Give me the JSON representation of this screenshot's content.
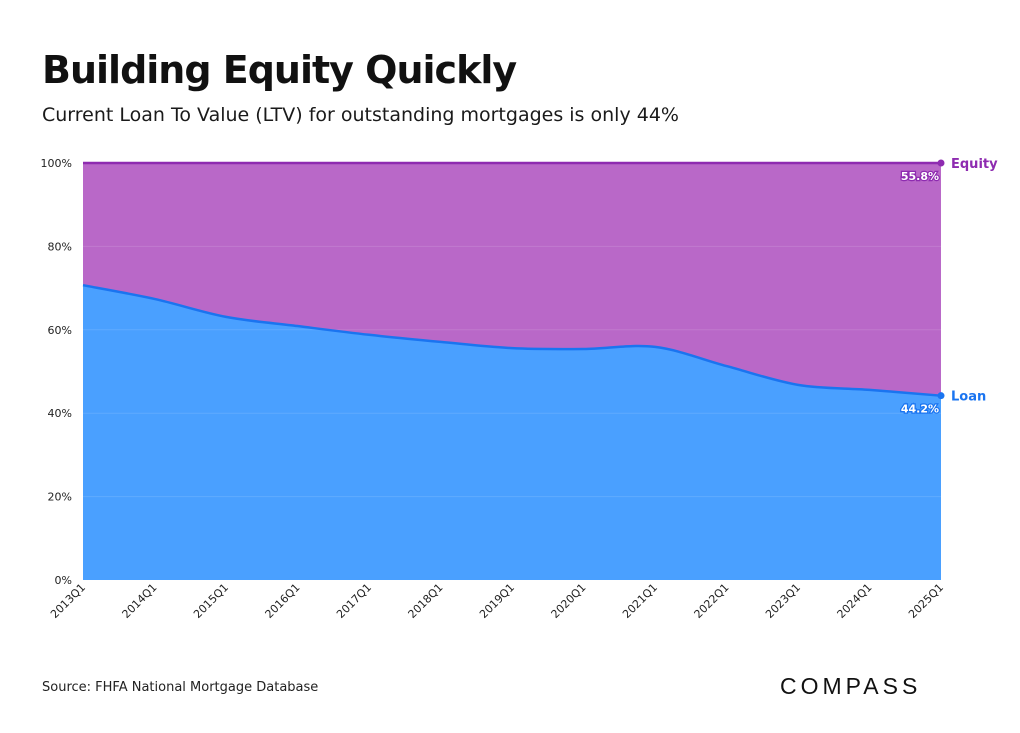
{
  "header": {
    "title": "Building Equity Quickly",
    "subtitle": "Current Loan To Value (LTV) for outstanding mortgages is only 44%"
  },
  "footer": {
    "source": "Source: FHFA National Mortgage Database",
    "logo": "COMPASS"
  },
  "chart_data": {
    "type": "area",
    "stacked": true,
    "title": "Building Equity Quickly",
    "subtitle": "Current Loan To Value (LTV) for outstanding mortgages is only 44%",
    "xlabel": "",
    "ylabel": "",
    "ylim": [
      0,
      100
    ],
    "y_ticks": [
      "0%",
      "20%",
      "40%",
      "60%",
      "80%",
      "100%"
    ],
    "categories": [
      "2013Q1",
      "2014Q1",
      "2015Q1",
      "2016Q1",
      "2017Q1",
      "2018Q1",
      "2019Q1",
      "2020Q1",
      "2021Q1",
      "2022Q1",
      "2023Q1",
      "2024Q1",
      "2025Q1"
    ],
    "series": [
      {
        "name": "Loan",
        "color": "#4aa0ff",
        "line_color": "#1a74f0",
        "values": [
          70.7,
          67.4,
          63.1,
          60.9,
          58.8,
          57.1,
          55.6,
          55.4,
          55.9,
          51.3,
          46.8,
          45.6,
          44.2
        ],
        "end_label": "44.2%"
      },
      {
        "name": "Equity",
        "color": "#b968c8",
        "line_color": "#8e2bb0",
        "values": [
          29.3,
          32.6,
          36.9,
          39.1,
          41.2,
          42.9,
          44.4,
          44.6,
          44.1,
          48.7,
          53.2,
          54.4,
          55.8
        ],
        "end_label": "55.8%"
      }
    ],
    "legend": "right-end labels",
    "grid": true
  }
}
